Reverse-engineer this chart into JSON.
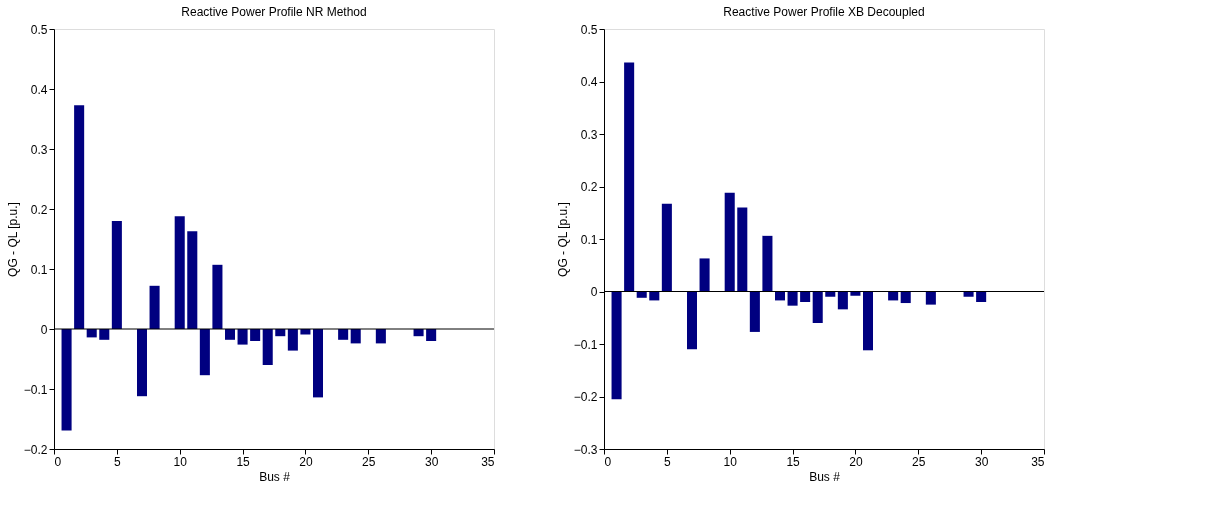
{
  "chart_data": [
    {
      "type": "bar",
      "title": "Reactive Power Profile  NR Method",
      "xlabel": "Bus #",
      "ylabel": "QG - QL [p.u.]",
      "x": [
        1,
        2,
        3,
        4,
        5,
        6,
        7,
        8,
        9,
        10,
        11,
        12,
        13,
        14,
        15,
        16,
        17,
        18,
        19,
        20,
        21,
        22,
        23,
        24,
        25,
        26,
        27,
        28,
        29,
        30
      ],
      "series": [
        {
          "color": "#000080",
          "values": [
            -0.169,
            0.373,
            -0.014,
            -0.018,
            0.18,
            null,
            -0.112,
            0.072,
            null,
            0.188,
            0.163,
            -0.077,
            0.107,
            -0.018,
            -0.026,
            -0.02,
            -0.06,
            -0.012,
            -0.036,
            -0.009,
            -0.114,
            null,
            -0.018,
            -0.024,
            null,
            -0.024,
            null,
            null,
            -0.012,
            -0.02
          ]
        }
      ],
      "xlim": [
        0,
        35
      ],
      "xticks": [
        0,
        5,
        10,
        15,
        20,
        25,
        30,
        35
      ],
      "ylim": [
        -0.2,
        0.5
      ],
      "yticks": [
        -0.2,
        -0.1,
        0,
        0.1,
        0.2,
        0.3,
        0.4,
        0.5
      ],
      "grid": false,
      "ref_lines": [
        {
          "axis": "y",
          "value": 0,
          "color": "#000000"
        }
      ]
    },
    {
      "type": "bar",
      "title": "Reactive Power Profile   XB Decoupled",
      "xlabel": "Bus #",
      "ylabel": "QG - QL [p.u.]",
      "x": [
        1,
        2,
        3,
        4,
        5,
        6,
        7,
        8,
        9,
        10,
        11,
        12,
        13,
        14,
        15,
        16,
        17,
        18,
        19,
        20,
        21,
        22,
        23,
        24,
        25,
        26,
        27,
        28,
        29,
        30
      ],
      "series": [
        {
          "color": "#000080",
          "values": [
            -0.205,
            0.436,
            -0.012,
            -0.017,
            0.167,
            null,
            -0.11,
            0.063,
            null,
            0.188,
            0.16,
            -0.077,
            0.106,
            -0.017,
            -0.027,
            -0.02,
            -0.06,
            -0.01,
            -0.034,
            -0.008,
            -0.112,
            null,
            -0.017,
            -0.022,
            null,
            -0.025,
            null,
            null,
            -0.01,
            -0.02
          ]
        }
      ],
      "xlim": [
        0,
        35
      ],
      "xticks": [
        0,
        5,
        10,
        15,
        20,
        25,
        30,
        35
      ],
      "ylim": [
        -0.3,
        0.5
      ],
      "yticks": [
        -0.3,
        -0.2,
        -0.1,
        0,
        0.1,
        0.2,
        0.3,
        0.4,
        0.5
      ],
      "grid": false,
      "ref_lines": [
        {
          "axis": "y",
          "value": 0,
          "color": "#000000"
        }
      ]
    }
  ]
}
